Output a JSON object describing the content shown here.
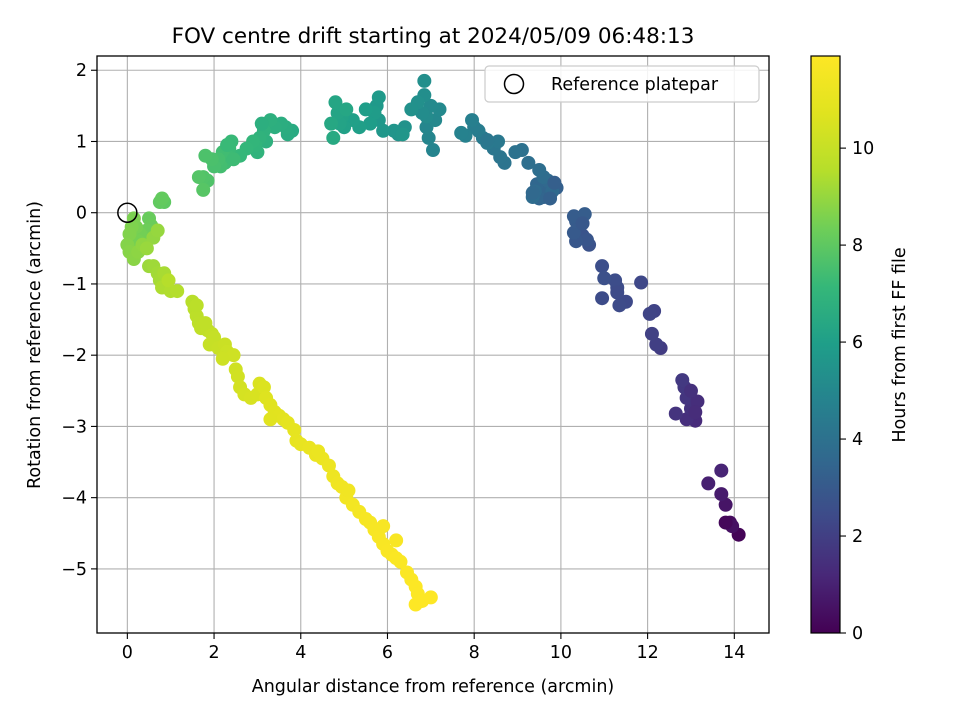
{
  "chart_data": {
    "type": "scatter",
    "title": "FOV centre drift starting at 2024/05/09 06:48:13",
    "xlabel": "Angular distance from reference (arcmin)",
    "ylabel": "Rotation from reference (arcmin)",
    "xlim": [
      -0.7,
      14.8
    ],
    "ylim": [
      -5.9,
      2.2
    ],
    "xticks": [
      0,
      2,
      4,
      6,
      8,
      10,
      12,
      14
    ],
    "yticks": [
      -5,
      -4,
      -3,
      -2,
      -1,
      0,
      1,
      2
    ],
    "grid": true,
    "legend": {
      "placement": "top-right",
      "entries": [
        "Reference platepar"
      ]
    },
    "reference_point": {
      "x": 0,
      "y": 0
    },
    "colorbar": {
      "label": "Hours from first FF file",
      "colormap": "viridis",
      "range": [
        0,
        11.9
      ],
      "ticks": [
        0,
        2,
        4,
        6,
        8,
        10
      ]
    },
    "series": [
      {
        "points": [
          [
            14.1,
            -4.52,
            0.1
          ],
          [
            13.9,
            -4.35,
            0.3
          ],
          [
            13.95,
            -4.4,
            0.45
          ],
          [
            13.8,
            -4.1,
            0.6
          ],
          [
            13.7,
            -3.95,
            0.8
          ],
          [
            13.4,
            -3.8,
            0.95
          ],
          [
            13.7,
            -3.62,
            1.1
          ],
          [
            13.8,
            -4.35,
            0.2
          ],
          [
            13.1,
            -2.92,
            1.3
          ],
          [
            12.9,
            -2.9,
            1.45
          ],
          [
            13.0,
            -2.75,
            1.55
          ],
          [
            12.9,
            -2.6,
            1.65
          ],
          [
            12.85,
            -2.45,
            1.75
          ],
          [
            12.8,
            -2.35,
            1.8
          ],
          [
            13.15,
            -2.65,
            1.4
          ],
          [
            12.65,
            -2.82,
            1.6
          ],
          [
            13.1,
            -2.8,
            1.35
          ],
          [
            13.0,
            -2.5,
            1.5
          ],
          [
            12.3,
            -1.9,
            1.9
          ],
          [
            12.2,
            -1.85,
            2.0
          ],
          [
            12.1,
            -1.7,
            2.05
          ],
          [
            12.15,
            -1.38,
            2.15
          ],
          [
            12.05,
            -1.42,
            2.2
          ],
          [
            11.85,
            -0.98,
            2.3
          ],
          [
            11.5,
            -1.25,
            2.35
          ],
          [
            11.35,
            -1.3,
            2.4
          ],
          [
            11.3,
            -1.05,
            2.45
          ],
          [
            11.25,
            -0.95,
            2.5
          ],
          [
            11.3,
            -1.12,
            2.42
          ],
          [
            10.95,
            -0.75,
            2.55
          ],
          [
            11.0,
            -0.92,
            2.6
          ],
          [
            10.95,
            -1.2,
            2.45
          ],
          [
            10.65,
            -0.45,
            2.7
          ],
          [
            10.5,
            -0.32,
            2.75
          ],
          [
            10.6,
            -0.38,
            2.8
          ],
          [
            10.35,
            -0.4,
            2.9
          ],
          [
            10.3,
            -0.28,
            3.0
          ],
          [
            10.35,
            -0.12,
            3.05
          ],
          [
            10.3,
            -0.05,
            3.1
          ],
          [
            10.55,
            -0.02,
            3.15
          ],
          [
            10.5,
            -0.15,
            2.95
          ],
          [
            9.9,
            0.35,
            3.25
          ],
          [
            9.75,
            0.25,
            3.3
          ],
          [
            9.65,
            0.32,
            3.35
          ],
          [
            9.6,
            0.22,
            3.4
          ],
          [
            9.55,
            0.3,
            3.45
          ],
          [
            9.5,
            0.2,
            3.5
          ],
          [
            9.45,
            0.4,
            3.55
          ],
          [
            9.7,
            0.45,
            3.6
          ],
          [
            9.8,
            0.3,
            3.65
          ],
          [
            9.4,
            0.3,
            3.7
          ],
          [
            9.35,
            0.22,
            3.75
          ],
          [
            9.6,
            0.5,
            3.8
          ],
          [
            9.5,
            0.6,
            3.85
          ],
          [
            9.25,
            0.7,
            3.9
          ],
          [
            9.35,
            0.28,
            3.6
          ],
          [
            9.75,
            0.2,
            3.3
          ],
          [
            9.85,
            0.42,
            3.2
          ],
          [
            9.1,
            0.88,
            4.0
          ],
          [
            8.95,
            0.85,
            4.05
          ],
          [
            8.7,
            0.7,
            4.1
          ],
          [
            8.6,
            0.78,
            4.15
          ],
          [
            8.45,
            0.9,
            4.2
          ],
          [
            8.55,
            1.0,
            4.3
          ],
          [
            8.3,
            0.98,
            4.35
          ],
          [
            8.2,
            1.05,
            4.4
          ],
          [
            8.1,
            1.15,
            4.5
          ],
          [
            8.0,
            1.2,
            4.55
          ],
          [
            7.95,
            1.3,
            4.6
          ],
          [
            7.8,
            1.08,
            4.7
          ],
          [
            7.7,
            1.12,
            4.75
          ],
          [
            8.3,
            1.02,
            4.25
          ],
          [
            7.05,
            0.88,
            4.85
          ],
          [
            6.95,
            1.05,
            4.9
          ],
          [
            6.9,
            1.2,
            4.95
          ],
          [
            7.1,
            1.3,
            5.0
          ],
          [
            7.2,
            1.45,
            5.05
          ],
          [
            7.0,
            1.5,
            5.1
          ],
          [
            6.9,
            1.35,
            5.15
          ],
          [
            6.8,
            1.4,
            5.2
          ],
          [
            6.85,
            1.65,
            5.25
          ],
          [
            6.85,
            1.85,
            5.3
          ],
          [
            6.7,
            1.55,
            5.35
          ],
          [
            6.55,
            1.45,
            5.4
          ],
          [
            6.4,
            1.2,
            5.45
          ],
          [
            6.25,
            1.1,
            5.5
          ],
          [
            6.15,
            1.15,
            5.55
          ],
          [
            6.35,
            1.1,
            5.6
          ],
          [
            5.9,
            1.15,
            5.65
          ],
          [
            5.8,
            1.3,
            5.7
          ],
          [
            5.75,
            1.5,
            5.75
          ],
          [
            5.8,
            1.62,
            5.8
          ],
          [
            5.7,
            1.4,
            5.85
          ],
          [
            5.6,
            1.25,
            5.9
          ],
          [
            5.5,
            1.45,
            5.95
          ],
          [
            5.35,
            1.2,
            6.0
          ],
          [
            5.2,
            1.3,
            6.05
          ],
          [
            5.0,
            1.2,
            6.1
          ],
          [
            4.95,
            1.35,
            6.15
          ],
          [
            4.9,
            1.25,
            6.2
          ],
          [
            4.85,
            1.4,
            6.25
          ],
          [
            4.8,
            1.55,
            6.3
          ],
          [
            5.05,
            1.45,
            6.35
          ],
          [
            4.7,
            1.25,
            6.4
          ],
          [
            4.75,
            1.05,
            6.45
          ],
          [
            3.8,
            1.15,
            6.5
          ],
          [
            3.7,
            1.1,
            6.55
          ],
          [
            3.65,
            1.2,
            6.6
          ],
          [
            3.55,
            1.25,
            6.65
          ],
          [
            3.4,
            1.2,
            6.7
          ],
          [
            3.3,
            1.3,
            6.75
          ],
          [
            3.2,
            1.0,
            6.8
          ],
          [
            3.15,
            1.15,
            6.85
          ],
          [
            3.05,
            1.05,
            6.9
          ],
          [
            3.0,
            0.85,
            6.95
          ],
          [
            2.95,
            0.95,
            7.0
          ],
          [
            2.9,
            1.0,
            7.05
          ],
          [
            2.75,
            0.9,
            7.1
          ],
          [
            2.6,
            0.8,
            7.15
          ],
          [
            3.1,
            1.25,
            6.72
          ],
          [
            2.4,
            1.0,
            7.2
          ],
          [
            2.35,
            0.9,
            7.25
          ],
          [
            2.3,
            0.8,
            7.3
          ],
          [
            2.25,
            0.7,
            7.35
          ],
          [
            2.2,
            0.85,
            7.4
          ],
          [
            2.15,
            0.65,
            7.45
          ],
          [
            2.1,
            0.75,
            7.5
          ],
          [
            2.0,
            0.65,
            7.55
          ],
          [
            1.95,
            0.75,
            7.6
          ],
          [
            1.8,
            0.8,
            7.65
          ],
          [
            1.85,
            0.45,
            7.7
          ],
          [
            1.75,
            0.5,
            7.75
          ],
          [
            1.65,
            0.5,
            7.8
          ],
          [
            1.75,
            0.32,
            7.85
          ],
          [
            2.45,
            0.75,
            7.32
          ],
          [
            2.3,
            0.95,
            7.22
          ],
          [
            0.85,
            0.15,
            8.0
          ],
          [
            0.75,
            0.15,
            8.05
          ],
          [
            0.8,
            0.2,
            8.1
          ],
          [
            0.5,
            -0.08,
            8.2
          ],
          [
            0.55,
            -0.18,
            8.25
          ],
          [
            0.45,
            -0.25,
            8.3
          ],
          [
            0.4,
            -0.35,
            8.35
          ],
          [
            0.3,
            -0.3,
            8.4
          ],
          [
            0.25,
            -0.4,
            8.45
          ],
          [
            0.2,
            -0.2,
            8.5
          ],
          [
            0.15,
            -0.08,
            8.55
          ],
          [
            0.1,
            -0.2,
            8.6
          ],
          [
            0.05,
            -0.3,
            8.65
          ],
          [
            0.0,
            -0.45,
            8.7
          ],
          [
            0.05,
            -0.55,
            8.75
          ],
          [
            0.15,
            -0.65,
            8.8
          ],
          [
            0.25,
            -0.55,
            8.85
          ],
          [
            0.35,
            -0.45,
            8.9
          ],
          [
            0.6,
            -0.35,
            8.95
          ],
          [
            0.7,
            -0.25,
            9.0
          ],
          [
            0.45,
            -0.5,
            9.05
          ],
          [
            0.5,
            -0.75,
            9.1
          ],
          [
            0.6,
            -0.75,
            9.15
          ],
          [
            0.7,
            -0.85,
            9.2
          ],
          [
            0.75,
            -0.95,
            9.25
          ],
          [
            0.85,
            -0.85,
            9.3
          ],
          [
            0.9,
            -1.0,
            9.35
          ],
          [
            0.8,
            -1.05,
            9.4
          ],
          [
            1.0,
            -1.1,
            9.45
          ],
          [
            1.15,
            -1.1,
            9.5
          ],
          [
            0.95,
            -0.95,
            9.55
          ],
          [
            1.5,
            -1.25,
            9.6
          ],
          [
            1.55,
            -1.35,
            9.65
          ],
          [
            1.6,
            -1.45,
            9.7
          ],
          [
            1.65,
            -1.55,
            9.75
          ],
          [
            1.7,
            -1.62,
            9.8
          ],
          [
            1.85,
            -1.65,
            9.85
          ],
          [
            1.95,
            -1.7,
            9.9
          ],
          [
            2.0,
            -1.75,
            9.95
          ],
          [
            1.9,
            -1.85,
            10.0
          ],
          [
            2.1,
            -1.9,
            10.05
          ],
          [
            2.25,
            -1.85,
            10.1
          ],
          [
            2.3,
            -1.95,
            10.15
          ],
          [
            2.45,
            -2.0,
            10.2
          ],
          [
            2.5,
            -2.2,
            10.25
          ],
          [
            2.55,
            -2.3,
            10.3
          ],
          [
            2.6,
            -2.45,
            10.35
          ],
          [
            2.7,
            -2.55,
            10.4
          ],
          [
            2.85,
            -2.6,
            10.45
          ],
          [
            3.0,
            -2.55,
            10.5
          ],
          [
            3.05,
            -2.4,
            10.55
          ],
          [
            3.15,
            -2.45,
            10.6
          ],
          [
            3.2,
            -2.6,
            10.65
          ],
          [
            3.3,
            -2.7,
            10.7
          ],
          [
            3.4,
            -2.8,
            10.75
          ],
          [
            3.5,
            -2.85,
            10.8
          ],
          [
            3.6,
            -2.9,
            10.85
          ],
          [
            3.7,
            -2.95,
            10.9
          ],
          [
            3.85,
            -3.05,
            10.95
          ],
          [
            3.9,
            -3.2,
            11.0
          ],
          [
            4.0,
            -3.25,
            11.05
          ],
          [
            4.2,
            -3.3,
            11.1
          ],
          [
            4.35,
            -3.4,
            11.15
          ],
          [
            4.5,
            -3.45,
            11.2
          ],
          [
            4.65,
            -3.55,
            11.25
          ],
          [
            4.75,
            -3.7,
            11.3
          ],
          [
            4.85,
            -3.8,
            11.35
          ],
          [
            4.95,
            -3.85,
            11.4
          ],
          [
            5.05,
            -4.0,
            11.45
          ],
          [
            5.2,
            -4.1,
            11.5
          ],
          [
            5.35,
            -4.2,
            11.55
          ],
          [
            5.5,
            -4.3,
            11.6
          ],
          [
            5.6,
            -4.35,
            11.62
          ],
          [
            5.7,
            -4.45,
            11.65
          ],
          [
            5.8,
            -4.55,
            11.68
          ],
          [
            5.9,
            -4.65,
            11.7
          ],
          [
            6.0,
            -4.75,
            11.72
          ],
          [
            6.1,
            -4.8,
            11.74
          ],
          [
            6.2,
            -4.85,
            11.76
          ],
          [
            6.3,
            -4.9,
            11.78
          ],
          [
            6.45,
            -5.05,
            11.8
          ],
          [
            6.55,
            -5.15,
            11.82
          ],
          [
            6.65,
            -5.25,
            11.84
          ],
          [
            6.7,
            -5.35,
            11.86
          ],
          [
            6.8,
            -5.45,
            11.88
          ],
          [
            6.65,
            -5.5,
            11.9
          ],
          [
            7.0,
            -5.4,
            11.88
          ],
          [
            5.9,
            -4.4,
            11.66
          ],
          [
            6.2,
            -4.6,
            11.7
          ],
          [
            5.1,
            -3.9,
            11.42
          ],
          [
            4.4,
            -3.35,
            11.18
          ],
          [
            3.3,
            -2.9,
            10.76
          ],
          [
            2.2,
            -2.05,
            10.18
          ],
          [
            1.8,
            -1.55,
            9.82
          ],
          [
            1.6,
            -1.3,
            9.68
          ]
        ]
      }
    ]
  }
}
